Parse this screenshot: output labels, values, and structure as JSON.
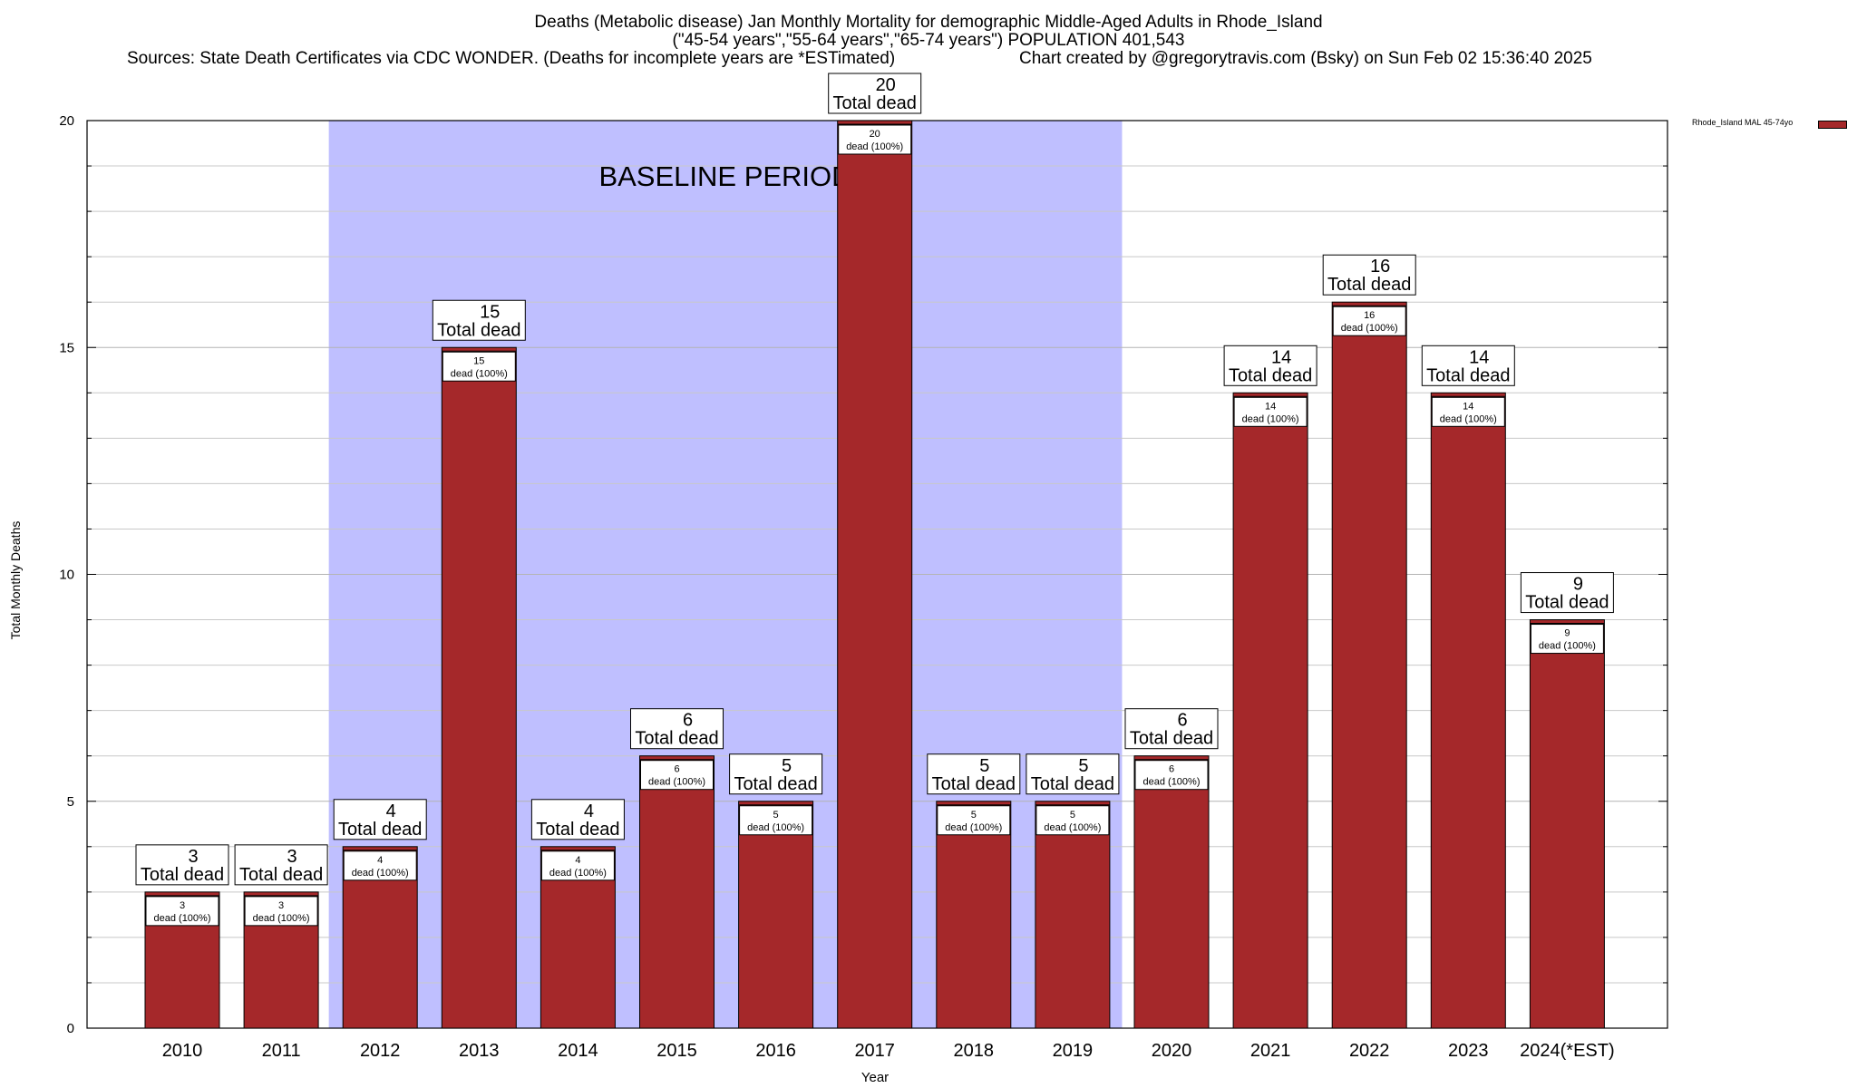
{
  "title_lines": [
    "Deaths (Metabolic disease) Jan Monthly Mortality for demographic Middle-Aged Adults in Rhode_Island",
    "(\"45-54 years\",\"55-64 years\",\"65-74 years\") POPULATION 401,543"
  ],
  "sources_text": "Sources: State Death Certificates via CDC WONDER. (Deaths for incomplete years are *ESTimated)",
  "credit_text": "Chart created by @gregorytravis.com (Bsky) on Sun Feb 02 15:36:40 2025",
  "colors": {
    "bar": "#a5282a",
    "baseline": "#bfbfff",
    "grid": "#c8c8c8"
  },
  "chart_data": {
    "type": "bar",
    "xlabel": "Year",
    "ylabel": "Total Monthly Deaths",
    "ylim": [
      0,
      20
    ],
    "yticks": [
      0,
      5,
      10,
      15,
      20
    ],
    "grid": true,
    "legend_position": "top-right outside plot",
    "categories": [
      "2010",
      "2011",
      "2012",
      "2013",
      "2014",
      "2015",
      "2016",
      "2017",
      "2018",
      "2019",
      "2020",
      "2021",
      "2022",
      "2023",
      "2024(*EST)"
    ],
    "series": [
      {
        "name": "Rhode_Island MAL 45-74yo",
        "values": [
          3,
          3,
          4,
          15,
          4,
          6,
          5,
          20,
          5,
          5,
          6,
          14,
          16,
          14,
          9
        ]
      }
    ],
    "total_label": "Total dead",
    "inner_label": "dead (100%)",
    "baseline_band": {
      "label": "BASELINE PERIOD",
      "start_category": "2012",
      "end_category": "2019"
    }
  }
}
